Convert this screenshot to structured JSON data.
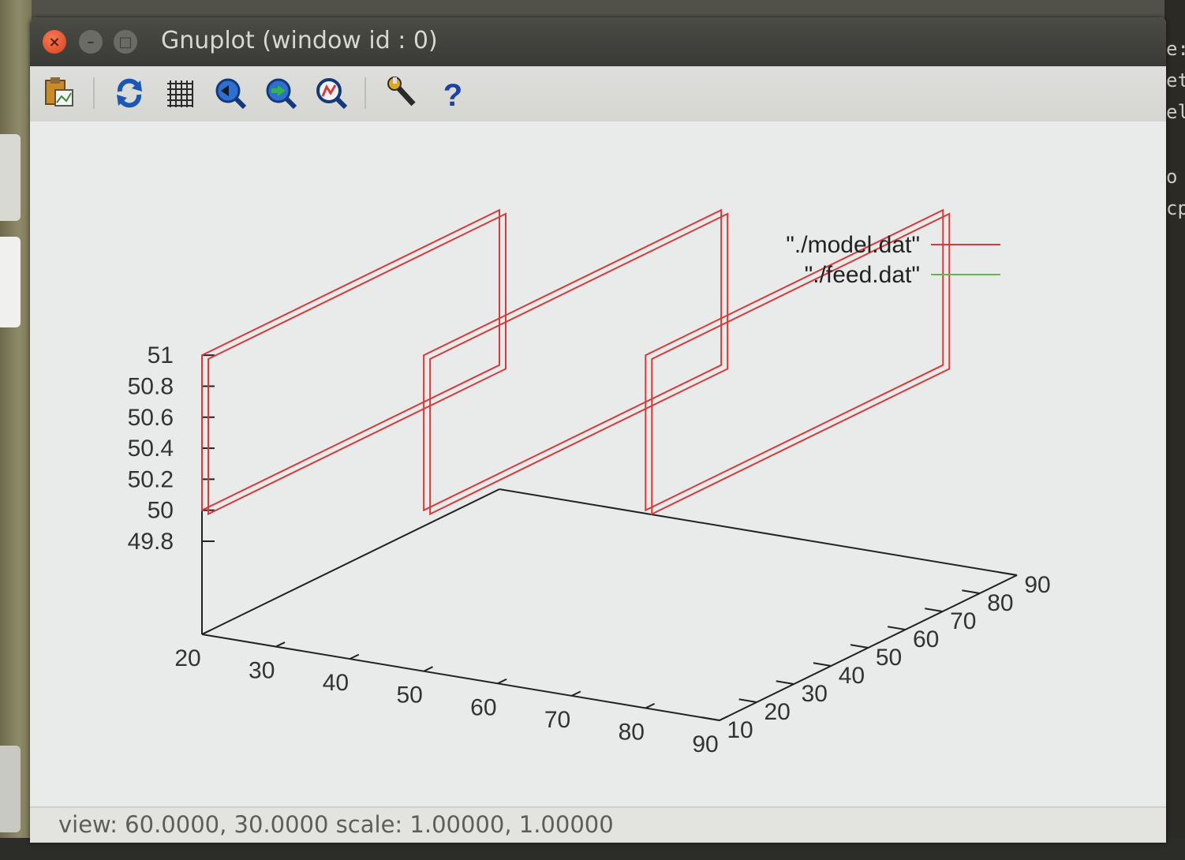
{
  "window": {
    "title": "Gnuplot (window id : 0)",
    "close_glyph": "×",
    "min_glyph": "–",
    "max_glyph": "□"
  },
  "toolbar": {
    "icons": [
      "copy-to-clipboard-icon",
      "replot-icon",
      "grid-icon",
      "zoom-previous-icon",
      "zoom-next-icon",
      "unzoom-icon",
      "configure-icon",
      "help-icon"
    ]
  },
  "status": "view: 60.0000,  30.0000   scale: 1.00000,  1.00000",
  "background_terminal": [
    "e:",
    "et",
    "el",
    "o",
    "cp"
  ],
  "colors": {
    "model": "#d63a3a",
    "feed": "#62b848",
    "axis": "#222222"
  },
  "chart_data": {
    "type": "line",
    "view": {
      "rot_x": 60,
      "rot_z": 30,
      "scale": 1,
      "scale_z": 1
    },
    "legend": {
      "position": "top-right",
      "entries": [
        "\"./model.dat\"",
        "\"./feed.dat\""
      ]
    },
    "axes": {
      "x": {
        "range": [
          20,
          90
        ],
        "ticks": [
          "20",
          "30",
          "40",
          "50",
          "60",
          "70",
          "80",
          "90"
        ]
      },
      "y": {
        "range": [
          10,
          90
        ],
        "ticks": [
          "10",
          "20",
          "30",
          "40",
          "50",
          "60",
          "70",
          "80",
          "90"
        ]
      },
      "z": {
        "range": [
          49.8,
          51
        ],
        "ticks": [
          "49.8",
          "50",
          "50.2",
          "50.4",
          "50.6",
          "50.8",
          "51"
        ]
      }
    },
    "series": [
      {
        "name": "\"./model.dat\"",
        "panels": [
          {
            "x": 20,
            "y": [
              10,
              90
            ],
            "z": [
              50,
              51
            ]
          },
          {
            "x": 50,
            "y": [
              10,
              90
            ],
            "z": [
              50,
              51
            ]
          },
          {
            "x": 80,
            "y": [
              10,
              90
            ],
            "z": [
              50,
              51
            ]
          }
        ]
      },
      {
        "name": "\"./feed.dat\"",
        "panels": []
      }
    ]
  }
}
